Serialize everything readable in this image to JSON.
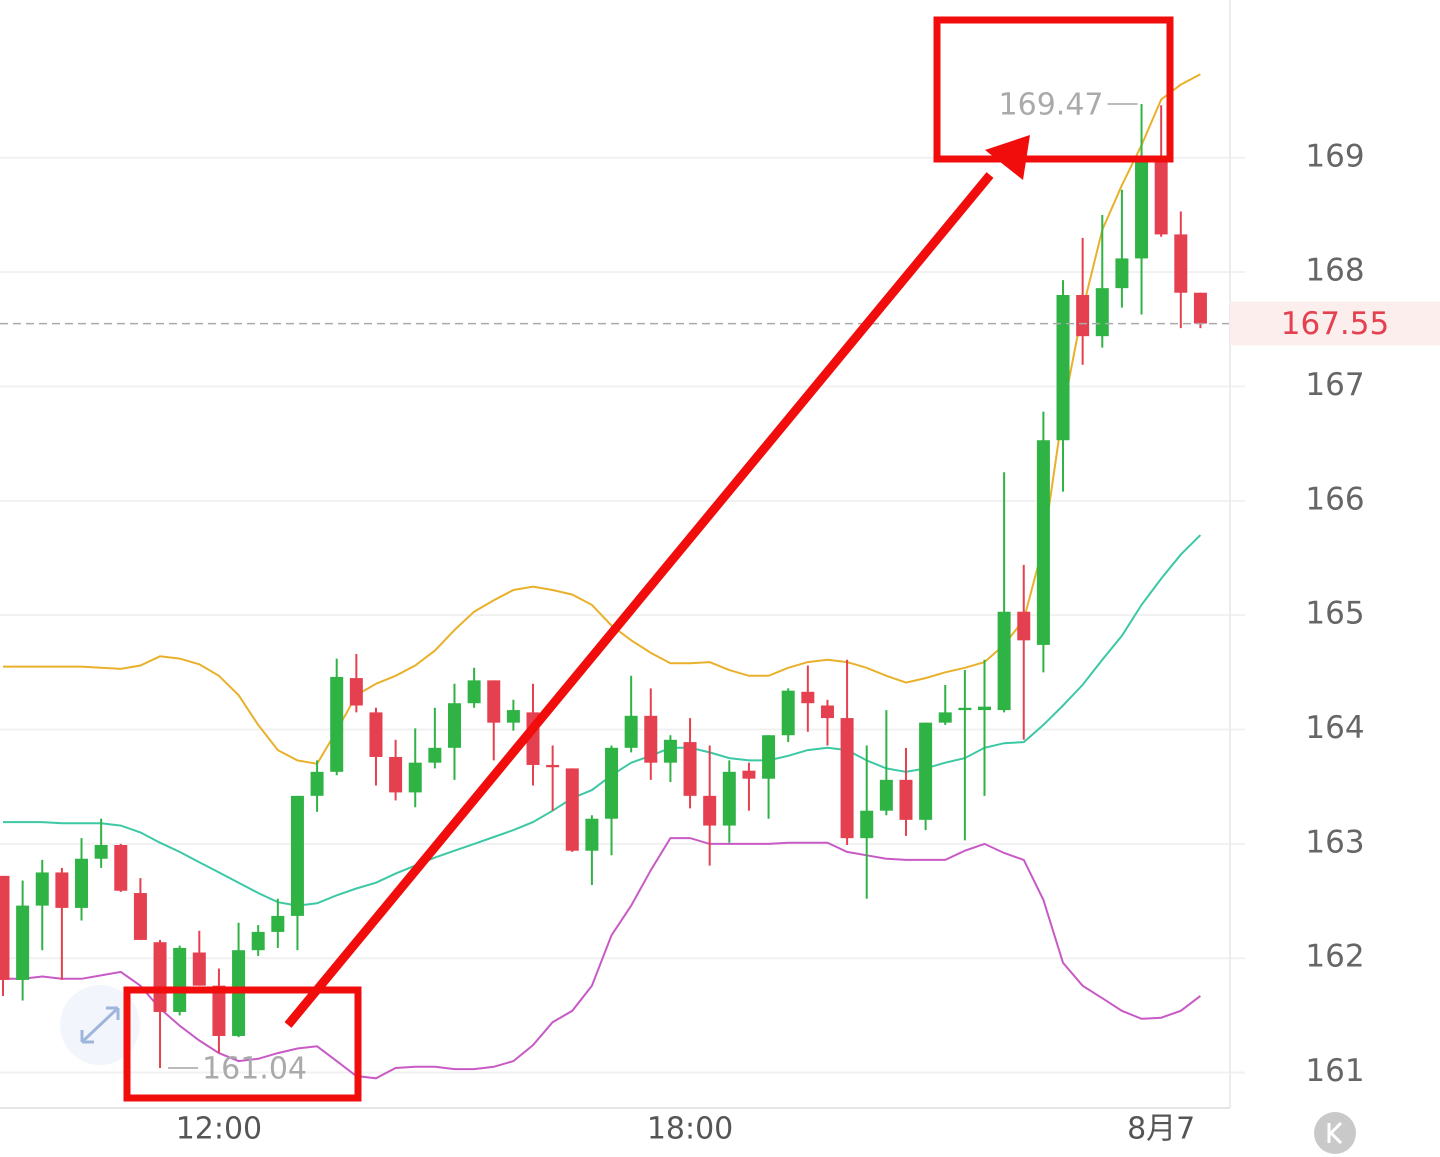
{
  "chart_data": {
    "type": "candlestick",
    "categories": [
      null,
      null,
      null,
      null,
      null,
      null,
      null,
      null,
      null,
      null,
      null,
      "12:00",
      null,
      null,
      null,
      null,
      null,
      null,
      null,
      null,
      null,
      null,
      null,
      null,
      null,
      null,
      null,
      null,
      null,
      null,
      null,
      null,
      null,
      null,
      null,
      "18:00",
      null,
      null,
      null,
      null,
      null,
      null,
      null,
      null,
      null,
      null,
      null,
      null,
      null,
      null,
      null,
      null,
      null,
      null,
      null,
      null,
      null,
      null,
      null,
      "8月7",
      null,
      null
    ],
    "open": [
      162.72,
      161.81,
      162.46,
      162.75,
      162.44,
      162.87,
      162.99,
      162.57,
      162.14,
      161.53,
      162.05,
      161.76,
      161.32,
      162.07,
      162.23,
      162.37,
      163.42,
      163.63,
      164.45,
      164.15,
      163.76,
      163.45,
      163.71,
      163.84,
      164.23,
      164.43,
      164.06,
      164.15,
      163.69,
      163.66,
      162.94,
      163.22,
      163.84,
      164.12,
      163.71,
      163.89,
      163.42,
      163.16,
      163.64,
      163.57,
      163.95,
      164.33,
      164.21,
      164.1,
      163.05,
      163.29,
      163.56,
      163.21,
      164.06,
      164.17,
      164.17,
      164.17,
      165.03,
      164.74,
      166.53,
      167.8,
      167.44,
      167.86,
      168.12,
      168.98,
      168.33,
      167.82
    ],
    "high": [
      162.72,
      162.68,
      162.86,
      162.79,
      163.05,
      163.22,
      163.0,
      162.7,
      162.16,
      162.11,
      162.24,
      161.91,
      162.31,
      162.29,
      162.52,
      163.42,
      163.73,
      164.62,
      164.66,
      164.19,
      163.91,
      164.01,
      164.19,
      164.4,
      164.54,
      164.43,
      164.26,
      164.4,
      163.86,
      163.66,
      163.25,
      163.86,
      164.47,
      164.36,
      163.95,
      164.1,
      163.86,
      163.73,
      163.71,
      163.95,
      164.36,
      164.56,
      164.26,
      164.61,
      163.86,
      164.17,
      163.84,
      164.06,
      164.39,
      164.52,
      164.61,
      166.25,
      165.44,
      166.78,
      167.93,
      168.3,
      168.5,
      168.72,
      169.47,
      169.46,
      168.53,
      167.82
    ],
    "low": [
      161.67,
      161.63,
      162.07,
      161.81,
      162.33,
      162.79,
      162.58,
      162.16,
      161.04,
      161.5,
      161.76,
      161.17,
      161.31,
      162.02,
      162.09,
      162.07,
      163.28,
      163.6,
      164.15,
      163.51,
      163.38,
      163.32,
      163.66,
      163.56,
      164.19,
      163.73,
      163.99,
      163.51,
      163.29,
      162.93,
      162.64,
      162.9,
      163.8,
      163.56,
      163.54,
      163.31,
      162.81,
      163.01,
      163.29,
      163.22,
      163.89,
      163.98,
      163.86,
      162.99,
      162.52,
      163.25,
      163.07,
      163.12,
      164.04,
      163.03,
      163.42,
      164.15,
      163.91,
      164.5,
      166.08,
      167.19,
      167.34,
      167.69,
      167.63,
      168.31,
      167.51,
      167.51
    ],
    "close": [
      161.81,
      162.46,
      162.75,
      162.44,
      162.87,
      162.99,
      162.59,
      162.16,
      161.53,
      162.09,
      161.76,
      161.32,
      162.07,
      162.23,
      162.37,
      163.42,
      163.63,
      164.46,
      164.21,
      163.76,
      163.45,
      163.71,
      163.84,
      164.23,
      164.43,
      164.06,
      164.17,
      163.69,
      163.67,
      162.94,
      163.22,
      163.84,
      164.12,
      163.71,
      163.91,
      163.42,
      163.16,
      163.63,
      163.57,
      163.95,
      164.34,
      164.23,
      164.1,
      163.05,
      163.29,
      163.56,
      163.21,
      164.06,
      164.15,
      164.19,
      164.2,
      165.03,
      164.78,
      166.53,
      167.8,
      167.44,
      167.86,
      168.12,
      168.98,
      168.33,
      167.82,
      167.55
    ],
    "up_color": "#2fb344",
    "down_color": "#e5404f",
    "lines": [
      {
        "color": "#e9b12b",
        "values": [
          164.55,
          164.55,
          164.55,
          164.55,
          164.55,
          164.54,
          164.53,
          164.56,
          164.64,
          164.62,
          164.57,
          164.47,
          164.3,
          164.04,
          163.82,
          163.73,
          163.7,
          163.99,
          164.3,
          164.4,
          164.47,
          164.56,
          164.69,
          164.87,
          165.03,
          165.13,
          165.22,
          165.25,
          165.22,
          165.18,
          165.09,
          164.91,
          164.78,
          164.67,
          164.58,
          164.58,
          164.59,
          164.52,
          164.47,
          164.47,
          164.54,
          164.59,
          164.61,
          164.59,
          164.54,
          164.47,
          164.41,
          164.45,
          164.5,
          164.54,
          164.59,
          164.74,
          164.96,
          165.61,
          166.79,
          167.67,
          168.37,
          168.76,
          169.11,
          169.51,
          169.64,
          169.73
        ]
      },
      {
        "color": "#3cc8a4",
        "values": [
          163.19,
          163.19,
          163.19,
          163.18,
          163.18,
          163.18,
          163.16,
          163.1,
          163.01,
          162.93,
          162.84,
          162.75,
          162.66,
          162.57,
          162.49,
          162.46,
          162.48,
          162.55,
          162.61,
          162.66,
          162.74,
          162.81,
          162.88,
          162.94,
          163.0,
          163.06,
          163.12,
          163.19,
          163.29,
          163.4,
          163.47,
          163.6,
          163.71,
          163.77,
          163.84,
          163.84,
          163.8,
          163.75,
          163.73,
          163.73,
          163.77,
          163.82,
          163.84,
          163.82,
          163.73,
          163.66,
          163.63,
          163.66,
          163.71,
          163.75,
          163.84,
          163.88,
          163.89,
          164.04,
          164.21,
          164.39,
          164.61,
          164.82,
          165.09,
          165.32,
          165.53,
          165.7
        ]
      },
      {
        "color": "#c85ac6",
        "values": [
          161.82,
          161.82,
          161.84,
          161.82,
          161.82,
          161.85,
          161.88,
          161.76,
          161.56,
          161.41,
          161.28,
          161.17,
          161.1,
          161.12,
          161.17,
          161.21,
          161.23,
          161.1,
          160.97,
          160.95,
          161.04,
          161.05,
          161.05,
          161.03,
          161.03,
          161.05,
          161.1,
          161.24,
          161.44,
          161.54,
          161.76,
          162.2,
          162.46,
          162.77,
          163.05,
          163.05,
          163.0,
          163.0,
          163.0,
          163.0,
          163.01,
          163.01,
          163.01,
          162.93,
          162.9,
          162.87,
          162.86,
          162.86,
          162.86,
          162.94,
          163.0,
          162.92,
          162.86,
          162.51,
          161.96,
          161.76,
          161.65,
          161.54,
          161.47,
          161.48,
          161.54,
          161.67
        ]
      }
    ],
    "ylim": [
      160.69,
      170.38
    ],
    "yticks": [
      161,
      162,
      163,
      164,
      165,
      166,
      167,
      168,
      169
    ],
    "grid": true,
    "last_price_color": "#e5404f"
  }
}
